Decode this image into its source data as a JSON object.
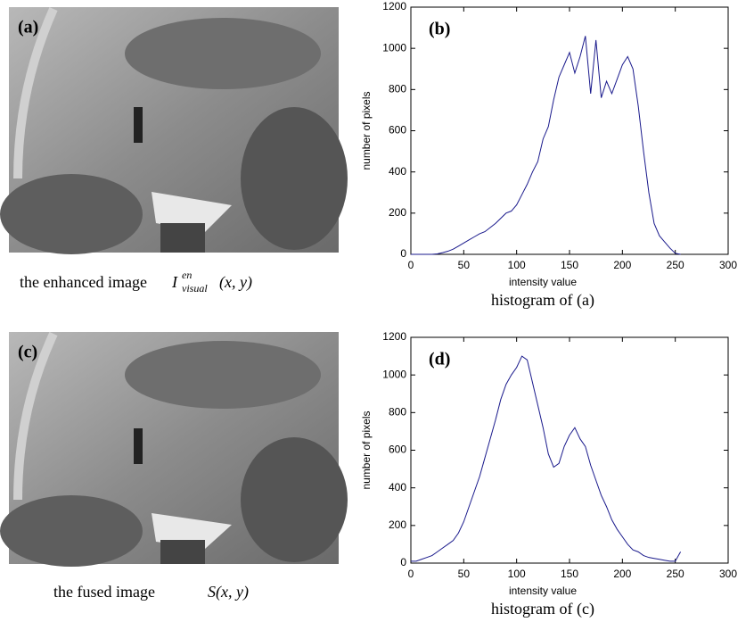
{
  "images": [
    {
      "label": "(a)",
      "text": "the enhanced image",
      "symbol": "I",
      "sup": "en",
      "sub": "visual",
      "args": "(x, y)"
    },
    {
      "label": "(c)",
      "text": "the fused image",
      "symbol": "S(x, y)"
    }
  ],
  "chart_data": [
    {
      "type": "line",
      "annotation": "(b)",
      "xlabel": "intensity value",
      "ylabel": "number of pixels",
      "caption": "histogram of (a)",
      "xlim": [
        0,
        300
      ],
      "xticks": [
        0,
        50,
        100,
        150,
        200,
        250,
        300
      ],
      "ylim": [
        0,
        1200
      ],
      "yticks": [
        0,
        200,
        400,
        600,
        800,
        1000,
        1200
      ],
      "grid": false,
      "x": [
        0,
        5,
        10,
        15,
        20,
        25,
        30,
        35,
        40,
        45,
        50,
        55,
        60,
        65,
        70,
        75,
        80,
        85,
        90,
        95,
        100,
        105,
        110,
        115,
        120,
        125,
        130,
        135,
        140,
        145,
        150,
        155,
        160,
        165,
        170,
        175,
        180,
        185,
        190,
        195,
        200,
        205,
        210,
        215,
        220,
        225,
        230,
        235,
        240,
        245,
        250,
        255
      ],
      "series": [
        {
          "color": "#1a1a8c",
          "values": [
            0,
            0,
            0,
            0,
            0,
            2,
            8,
            15,
            25,
            40,
            55,
            70,
            85,
            100,
            110,
            130,
            150,
            175,
            200,
            210,
            240,
            290,
            340,
            400,
            450,
            560,
            620,
            750,
            860,
            920,
            980,
            880,
            960,
            1060,
            780,
            1040,
            760,
            840,
            780,
            850,
            920,
            960,
            900,
            720,
            500,
            300,
            150,
            90,
            60,
            30,
            5,
            0
          ]
        }
      ]
    },
    {
      "type": "line",
      "annotation": "(d)",
      "xlabel": "intensity value",
      "ylabel": "number of pixels",
      "caption": "histogram of (c)",
      "xlim": [
        0,
        300
      ],
      "xticks": [
        0,
        50,
        100,
        150,
        200,
        250,
        300
      ],
      "ylim": [
        0,
        1200
      ],
      "yticks": [
        0,
        200,
        400,
        600,
        800,
        1000,
        1200
      ],
      "grid": false,
      "x": [
        0,
        5,
        10,
        15,
        20,
        25,
        30,
        35,
        40,
        45,
        50,
        55,
        60,
        65,
        70,
        75,
        80,
        85,
        90,
        95,
        100,
        105,
        110,
        115,
        120,
        125,
        130,
        135,
        140,
        145,
        150,
        155,
        160,
        165,
        170,
        175,
        180,
        185,
        190,
        195,
        200,
        205,
        210,
        215,
        220,
        225,
        230,
        235,
        240,
        245,
        250,
        255
      ],
      "series": [
        {
          "color": "#1a1a8c",
          "values": [
            10,
            10,
            20,
            30,
            40,
            60,
            80,
            100,
            120,
            160,
            220,
            300,
            380,
            460,
            560,
            660,
            760,
            870,
            950,
            1000,
            1040,
            1100,
            1080,
            960,
            840,
            720,
            580,
            510,
            530,
            620,
            680,
            720,
            660,
            620,
            520,
            440,
            360,
            300,
            230,
            180,
            140,
            100,
            70,
            60,
            40,
            30,
            25,
            20,
            15,
            10,
            10,
            60
          ]
        }
      ]
    }
  ]
}
